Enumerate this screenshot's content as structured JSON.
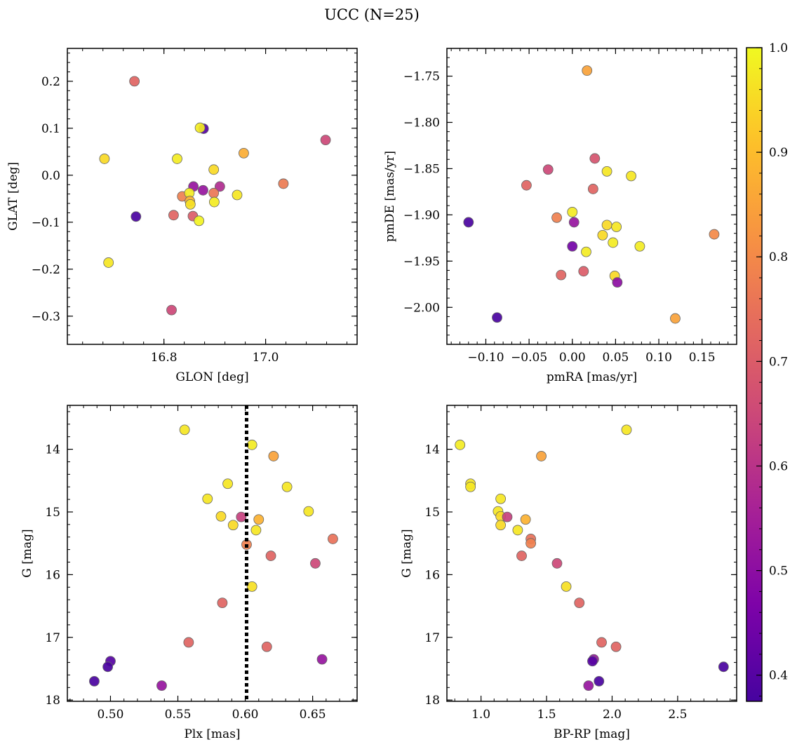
{
  "figure": {
    "title": "UCC (N=25)"
  },
  "colorbar": {
    "range": [
      0.375,
      1.0
    ],
    "ticks": [
      0.4,
      0.5,
      0.6,
      0.7,
      0.8,
      0.9,
      1.0
    ],
    "tick_labels": [
      "0.4",
      "0.5",
      "0.6",
      "0.7",
      "0.8",
      "0.9",
      "1.0"
    ],
    "colormap": "plasma"
  },
  "chart_data": [
    {
      "type": "scatter",
      "panel": "top-left",
      "xlabel": "GLON [deg]",
      "ylabel": "GLAT [deg]",
      "xlim": [
        16.61,
        17.18
      ],
      "ylim": [
        -0.36,
        0.27
      ],
      "xticks": [
        16.8,
        17.0
      ],
      "xtick_labels": [
        "16.8",
        "17.0"
      ],
      "yticks": [
        0.2,
        0.1,
        0.0,
        -0.1,
        -0.2,
        -0.3
      ],
      "ytick_labels": [
        "0.2",
        "0.1",
        "0.0",
        "−0.1",
        "−0.2",
        "−0.3"
      ],
      "points": [
        {
          "x": 16.742,
          "y": 0.2,
          "c": 0.72
        },
        {
          "x": 16.878,
          "y": 0.099,
          "c": 0.4
        },
        {
          "x": 16.871,
          "y": 0.101,
          "c": 0.98
        },
        {
          "x": 16.683,
          "y": 0.035,
          "c": 0.95
        },
        {
          "x": 16.826,
          "y": 0.035,
          "c": 0.98
        },
        {
          "x": 16.957,
          "y": 0.047,
          "c": 0.87
        },
        {
          "x": 17.118,
          "y": 0.075,
          "c": 0.65
        },
        {
          "x": 16.898,
          "y": 0.012,
          "c": 0.95
        },
        {
          "x": 17.035,
          "y": -0.018,
          "c": 0.77
        },
        {
          "x": 16.858,
          "y": -0.024,
          "c": 0.52
        },
        {
          "x": 16.877,
          "y": -0.032,
          "c": 0.52
        },
        {
          "x": 16.91,
          "y": -0.024,
          "c": 0.58
        },
        {
          "x": 16.836,
          "y": -0.045,
          "c": 0.78
        },
        {
          "x": 16.85,
          "y": -0.038,
          "c": 0.98
        },
        {
          "x": 16.851,
          "y": -0.055,
          "c": 0.88
        },
        {
          "x": 16.852,
          "y": -0.062,
          "c": 0.96
        },
        {
          "x": 16.898,
          "y": -0.038,
          "c": 0.76
        },
        {
          "x": 16.899,
          "y": -0.057,
          "c": 0.98
        },
        {
          "x": 16.944,
          "y": -0.042,
          "c": 0.97
        },
        {
          "x": 16.745,
          "y": -0.088,
          "c": 0.38
        },
        {
          "x": 16.819,
          "y": -0.085,
          "c": 0.72
        },
        {
          "x": 16.857,
          "y": -0.087,
          "c": 0.7
        },
        {
          "x": 16.869,
          "y": -0.097,
          "c": 0.99
        },
        {
          "x": 16.691,
          "y": -0.186,
          "c": 0.97
        },
        {
          "x": 16.815,
          "y": -0.287,
          "c": 0.65
        }
      ]
    },
    {
      "type": "scatter",
      "panel": "top-right",
      "xlabel": "pmRA [mas/yr]",
      "ylabel": "pmDE [mas/yr]",
      "xlim": [
        -0.145,
        0.19
      ],
      "ylim": [
        -2.04,
        -1.72
      ],
      "xticks": [
        -0.1,
        -0.05,
        0.0,
        0.05,
        0.1,
        0.15
      ],
      "xtick_labels": [
        "−0.10",
        "−0.05",
        "0.00",
        "0.05",
        "0.10",
        "0.15"
      ],
      "yticks": [
        -1.75,
        -1.8,
        -1.85,
        -1.9,
        -1.95,
        -2.0
      ],
      "ytick_labels": [
        "−1.75",
        "−1.80",
        "−1.85",
        "−1.90",
        "−1.95",
        "−2.00"
      ],
      "points": [
        {
          "x": 0.017,
          "y": -1.744,
          "c": 0.85
        },
        {
          "x": 0.026,
          "y": -1.839,
          "c": 0.68
        },
        {
          "x": -0.028,
          "y": -1.851,
          "c": 0.65
        },
        {
          "x": 0.04,
          "y": -1.853,
          "c": 0.97
        },
        {
          "x": 0.068,
          "y": -1.858,
          "c": 0.97
        },
        {
          "x": -0.053,
          "y": -1.868,
          "c": 0.72
        },
        {
          "x": 0.024,
          "y": -1.872,
          "c": 0.72
        },
        {
          "x": 0.0,
          "y": -1.897,
          "c": 0.98
        },
        {
          "x": -0.018,
          "y": -1.903,
          "c": 0.78
        },
        {
          "x": 0.002,
          "y": -1.908,
          "c": 0.52
        },
        {
          "x": -0.12,
          "y": -1.908,
          "c": 0.38
        },
        {
          "x": 0.04,
          "y": -1.911,
          "c": 0.95
        },
        {
          "x": 0.051,
          "y": -1.913,
          "c": 0.97
        },
        {
          "x": 0.164,
          "y": -1.921,
          "c": 0.8
        },
        {
          "x": 0.035,
          "y": -1.922,
          "c": 0.95
        },
        {
          "x": 0.047,
          "y": -1.93,
          "c": 0.98
        },
        {
          "x": 0.0,
          "y": -1.934,
          "c": 0.45
        },
        {
          "x": 0.078,
          "y": -1.934,
          "c": 0.98
        },
        {
          "x": 0.016,
          "y": -1.94,
          "c": 0.98
        },
        {
          "x": 0.013,
          "y": -1.961,
          "c": 0.7
        },
        {
          "x": -0.013,
          "y": -1.965,
          "c": 0.72
        },
        {
          "x": 0.049,
          "y": -1.966,
          "c": 0.95
        },
        {
          "x": 0.052,
          "y": -1.973,
          "c": 0.5
        },
        {
          "x": -0.087,
          "y": -2.011,
          "c": 0.38
        },
        {
          "x": 0.119,
          "y": -2.012,
          "c": 0.85
        }
      ]
    },
    {
      "type": "scatter",
      "panel": "bottom-left",
      "xlabel": "Plx [mas]",
      "ylabel": "G [mag]",
      "xlim": [
        0.468,
        0.683
      ],
      "ylim": [
        18.02,
        13.3
      ],
      "y_inverted": true,
      "xticks": [
        0.5,
        0.55,
        0.6,
        0.65
      ],
      "xtick_labels": [
        "0.50",
        "0.55",
        "0.60",
        "0.65"
      ],
      "yticks": [
        14,
        15,
        16,
        17,
        18
      ],
      "ytick_labels": [
        "14",
        "15",
        "16",
        "17",
        "18"
      ],
      "vline": {
        "x": 0.601,
        "style": "dotted",
        "color": "#000000"
      },
      "points": [
        {
          "x": 0.555,
          "y": 13.69,
          "c": 0.97
        },
        {
          "x": 0.605,
          "y": 13.93,
          "c": 0.98
        },
        {
          "x": 0.621,
          "y": 14.11,
          "c": 0.85
        },
        {
          "x": 0.587,
          "y": 14.55,
          "c": 0.97
        },
        {
          "x": 0.631,
          "y": 14.6,
          "c": 0.97
        },
        {
          "x": 0.572,
          "y": 14.79,
          "c": 0.97
        },
        {
          "x": 0.647,
          "y": 14.99,
          "c": 0.97
        },
        {
          "x": 0.582,
          "y": 15.07,
          "c": 0.95
        },
        {
          "x": 0.597,
          "y": 15.08,
          "c": 0.63
        },
        {
          "x": 0.61,
          "y": 15.12,
          "c": 0.88
        },
        {
          "x": 0.591,
          "y": 15.21,
          "c": 0.95
        },
        {
          "x": 0.608,
          "y": 15.29,
          "c": 0.97
        },
        {
          "x": 0.665,
          "y": 15.43,
          "c": 0.75
        },
        {
          "x": 0.601,
          "y": 15.52,
          "c": 0.78
        },
        {
          "x": 0.619,
          "y": 15.7,
          "c": 0.72
        },
        {
          "x": 0.652,
          "y": 15.82,
          "c": 0.65
        },
        {
          "x": 0.605,
          "y": 16.19,
          "c": 0.96
        },
        {
          "x": 0.583,
          "y": 16.45,
          "c": 0.72
        },
        {
          "x": 0.558,
          "y": 17.08,
          "c": 0.72
        },
        {
          "x": 0.616,
          "y": 17.15,
          "c": 0.72
        },
        {
          "x": 0.5,
          "y": 17.38,
          "c": 0.4
        },
        {
          "x": 0.657,
          "y": 17.35,
          "c": 0.52
        },
        {
          "x": 0.498,
          "y": 17.47,
          "c": 0.38
        },
        {
          "x": 0.488,
          "y": 17.7,
          "c": 0.38
        },
        {
          "x": 0.538,
          "y": 17.77,
          "c": 0.52
        }
      ]
    },
    {
      "type": "scatter",
      "panel": "bottom-right",
      "xlabel": "BP-RP [mag]",
      "ylabel": "G [mag]",
      "xlim": [
        0.74,
        2.95
      ],
      "ylim": [
        18.02,
        13.3
      ],
      "y_inverted": true,
      "xticks": [
        1.0,
        1.5,
        2.0,
        2.5
      ],
      "xtick_labels": [
        "1.0",
        "1.5",
        "2.0",
        "2.5"
      ],
      "yticks": [
        14,
        15,
        16,
        17,
        18
      ],
      "ytick_labels": [
        "14",
        "15",
        "16",
        "17",
        "18"
      ],
      "points": [
        {
          "x": 2.11,
          "y": 13.69,
          "c": 0.97
        },
        {
          "x": 0.84,
          "y": 13.93,
          "c": 0.98
        },
        {
          "x": 1.46,
          "y": 14.11,
          "c": 0.85
        },
        {
          "x": 0.92,
          "y": 14.55,
          "c": 0.97
        },
        {
          "x": 0.92,
          "y": 14.6,
          "c": 0.97
        },
        {
          "x": 1.15,
          "y": 14.79,
          "c": 0.97
        },
        {
          "x": 1.13,
          "y": 14.99,
          "c": 0.97
        },
        {
          "x": 1.15,
          "y": 15.07,
          "c": 0.95
        },
        {
          "x": 1.2,
          "y": 15.08,
          "c": 0.63
        },
        {
          "x": 1.34,
          "y": 15.12,
          "c": 0.88
        },
        {
          "x": 1.15,
          "y": 15.21,
          "c": 0.95
        },
        {
          "x": 1.28,
          "y": 15.29,
          "c": 0.97
        },
        {
          "x": 1.38,
          "y": 15.43,
          "c": 0.75
        },
        {
          "x": 1.38,
          "y": 15.5,
          "c": 0.78
        },
        {
          "x": 1.31,
          "y": 15.7,
          "c": 0.72
        },
        {
          "x": 1.58,
          "y": 15.82,
          "c": 0.65
        },
        {
          "x": 1.65,
          "y": 16.19,
          "c": 0.96
        },
        {
          "x": 1.75,
          "y": 16.45,
          "c": 0.72
        },
        {
          "x": 1.92,
          "y": 17.08,
          "c": 0.72
        },
        {
          "x": 2.03,
          "y": 17.15,
          "c": 0.72
        },
        {
          "x": 1.86,
          "y": 17.35,
          "c": 0.52
        },
        {
          "x": 1.85,
          "y": 17.38,
          "c": 0.4
        },
        {
          "x": 2.85,
          "y": 17.47,
          "c": 0.38
        },
        {
          "x": 1.9,
          "y": 17.7,
          "c": 0.38
        },
        {
          "x": 1.82,
          "y": 17.77,
          "c": 0.52
        }
      ]
    }
  ]
}
